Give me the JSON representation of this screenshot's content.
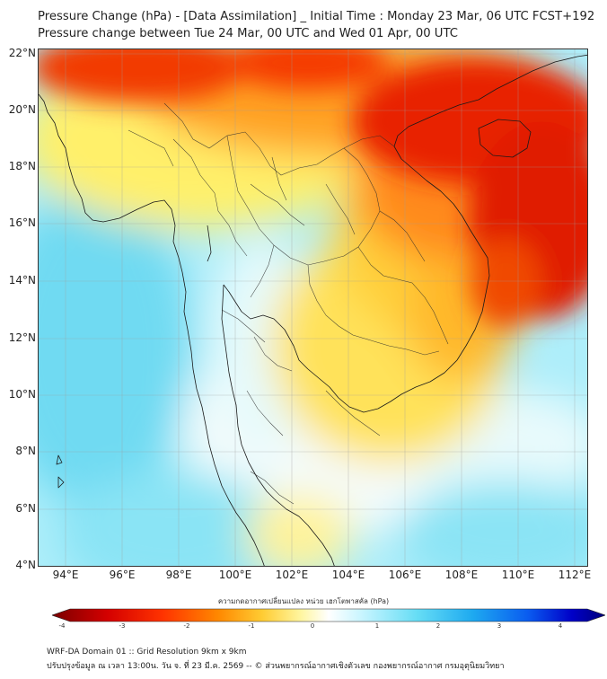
{
  "header": {
    "title": "Pressure Change (hPa) - [Data Assimilation] _ Initial Time : Monday 23 Mar, 06 UTC FCST+192",
    "subtitle": "Pressure change between Tue 24 Mar, 00 UTC and Wed 01 Apr, 00 UTC"
  },
  "map": {
    "lat_labels": [
      "22°N",
      "20°N",
      "18°N",
      "16°N",
      "14°N",
      "12°N",
      "10°N",
      "8°N",
      "6°N",
      "4°N"
    ],
    "lon_labels": [
      "94°E",
      "96°E",
      "98°E",
      "100°E",
      "102°E",
      "104°E",
      "106°E",
      "108°E",
      "110°E",
      "112°E"
    ],
    "lat_range": [
      4,
      22.2
    ],
    "lon_range": [
      93,
      112.5
    ]
  },
  "colorbar": {
    "title": "ความกดอากาศเปลี่ยนแปลง หน่วย เฮกโตพาสคัล (hPa)",
    "ticks": [
      "-4",
      "-3",
      "-2",
      "-1",
      "0",
      "1",
      "2",
      "3",
      "4"
    ],
    "range": [
      -4,
      4
    ],
    "colors": [
      "#7a0000",
      "#d40000",
      "#ff3300",
      "#ff8800",
      "#ffcc33",
      "#fff6a0",
      "#ffffff",
      "#c8f5ff",
      "#66ddf5",
      "#1eaaf0",
      "#0a5cf0",
      "#0000c8",
      "#00007a"
    ]
  },
  "footer": {
    "line1": "WRF-DA Domain 01 :: Grid Resolution 9km x 9km",
    "line2": "ปรับปรุงข้อมูล ณ เวลา 13:00น. วัน จ. ที่ 23 มี.ค. 2569 -- © ส่วนพยากรณ์อากาศเชิงตัวเลข กองพยากรณ์อากาศ กรมอุตุนิยมวิทยา"
  }
}
